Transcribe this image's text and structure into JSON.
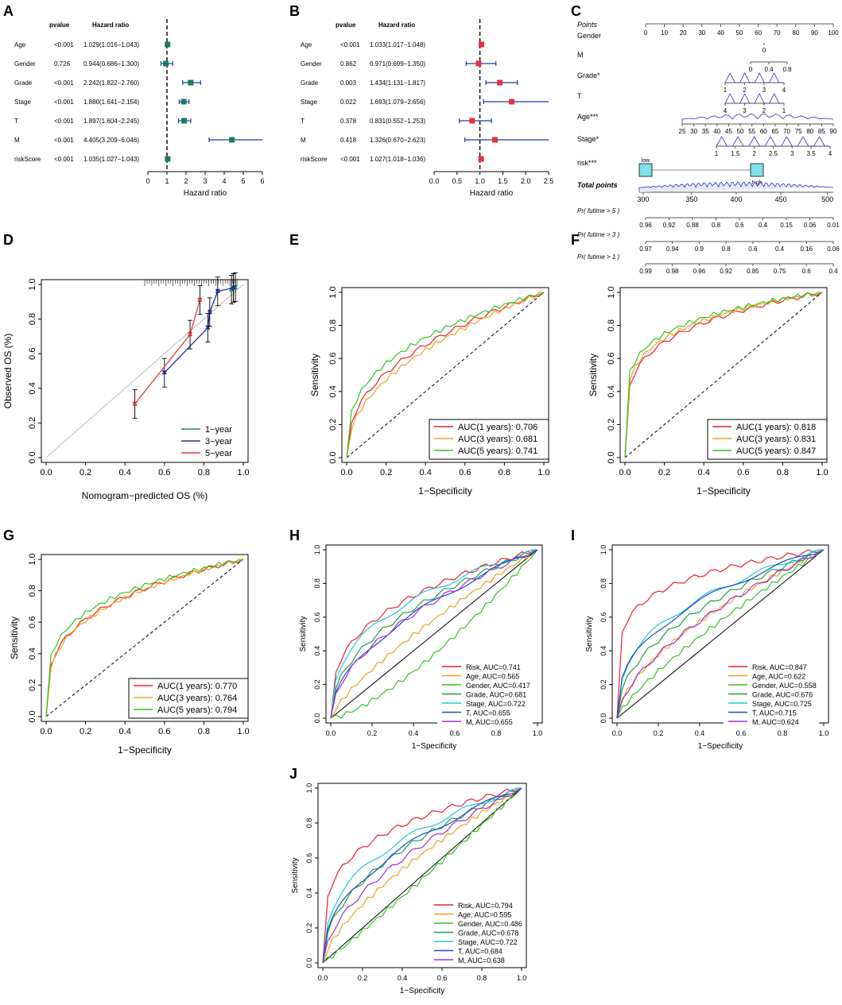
{
  "chart_data": [
    {
      "panel": "A",
      "type": "forest",
      "header": {
        "pvalue": "pvalue",
        "hr": "Hazard ratio"
      },
      "xlabel": "Hazard ratio",
      "xlim": [
        0,
        6
      ],
      "ticks": [
        0,
        1,
        2,
        3,
        4,
        5,
        6
      ],
      "color": "#1e7a5e",
      "rows": [
        {
          "name": "Age",
          "p": "<0.001",
          "text": "1.029(1.016−1.043)",
          "hr": 1.029,
          "lo": 1.016,
          "hi": 1.043
        },
        {
          "name": "Gender",
          "p": "0.726",
          "text": "0.944(0.686−1.300)",
          "hr": 0.944,
          "lo": 0.686,
          "hi": 1.3
        },
        {
          "name": "Grade",
          "p": "<0.001",
          "text": "2.242(1.822−2.760)",
          "hr": 2.242,
          "lo": 1.822,
          "hi": 2.76
        },
        {
          "name": "Stage",
          "p": "<0.001",
          "text": "1.880(1.641−2.154)",
          "hr": 1.88,
          "lo": 1.641,
          "hi": 2.154
        },
        {
          "name": "T",
          "p": "<0.001",
          "text": "1.897(1.604−2.245)",
          "hr": 1.897,
          "lo": 1.604,
          "hi": 2.245
        },
        {
          "name": "M",
          "p": "<0.001",
          "text": "4.405(3.209−6.046)",
          "hr": 4.405,
          "lo": 3.209,
          "hi": 6.046
        },
        {
          "name": "riskScore",
          "p": "<0.001",
          "text": "1.035(1.027−1.043)",
          "hr": 1.035,
          "lo": 1.027,
          "hi": 1.043
        }
      ]
    },
    {
      "panel": "B",
      "type": "forest",
      "header": {
        "pvalue": "pvalue",
        "hr": "Hazard ratio"
      },
      "xlabel": "Hazard ratio",
      "xlim": [
        0,
        2.5
      ],
      "ticks": [
        0,
        0.5,
        1,
        1.5,
        2,
        2.5
      ],
      "tick_labels": [
        "0.0",
        "0.5",
        "1.0",
        "1.5",
        "2.0",
        "2.5"
      ],
      "color": "#e8303a",
      "rows": [
        {
          "name": "Age",
          "p": "<0.001",
          "text": "1.033(1.017−1.048)",
          "hr": 1.033,
          "lo": 1.017,
          "hi": 1.048
        },
        {
          "name": "Gender",
          "p": "0.862",
          "text": "0.971(0.699−1.350)",
          "hr": 0.971,
          "lo": 0.699,
          "hi": 1.35
        },
        {
          "name": "Grade",
          "p": "0.003",
          "text": "1.434(1.131−1.817)",
          "hr": 1.434,
          "lo": 1.131,
          "hi": 1.817
        },
        {
          "name": "Stage",
          "p": "0.022",
          "text": "1.693(1.079−2.656)",
          "hr": 1.693,
          "lo": 1.079,
          "hi": 2.656
        },
        {
          "name": "T",
          "p": "0.378",
          "text": "0.831(0.552−1.253)",
          "hr": 0.831,
          "lo": 0.552,
          "hi": 1.253
        },
        {
          "name": "M",
          "p": "0.418",
          "text": "1.326(0.670−2.623)",
          "hr": 1.326,
          "lo": 0.67,
          "hi": 2.623
        },
        {
          "name": "riskScore",
          "p": "<0.001",
          "text": "1.027(1.018−1.036)",
          "hr": 1.027,
          "lo": 1.018,
          "hi": 1.036
        }
      ]
    },
    {
      "panel": "C",
      "type": "nomogram",
      "rows": [
        {
          "name": "Points",
          "italic": true,
          "scale": [
            0,
            100
          ],
          "ticks": [
            "0",
            "10",
            "20",
            "30",
            "40",
            "50",
            "60",
            "70",
            "80",
            "90",
            "100"
          ]
        },
        {
          "name": "Gender",
          "labels": [
            "0"
          ]
        },
        {
          "name": "M",
          "labels": [
            "0",
            "0.4",
            "0.8"
          ]
        },
        {
          "name": "Grade*",
          "labels": [
            "1",
            "2",
            "3",
            "4"
          ]
        },
        {
          "name": "T",
          "labels": [
            "4",
            "3",
            "2",
            "1"
          ]
        },
        {
          "name": "Age***",
          "labels": [
            "25",
            "30",
            "35",
            "40",
            "45",
            "50",
            "55",
            "60",
            "65",
            "70",
            "75",
            "80",
            "85",
            "90"
          ]
        },
        {
          "name": "Stage*",
          "labels": [
            "1",
            "1.5",
            "2",
            "2.5",
            "3",
            "3.5",
            "4"
          ]
        },
        {
          "name": "risk***",
          "labels": [
            "low",
            "high"
          ]
        },
        {
          "name": "Total points",
          "bold": true,
          "labels": [
            "300",
            "350",
            "400",
            "450",
            "500"
          ]
        },
        {
          "name": "Pr( futime > 5 )",
          "labels": [
            "0.96",
            "0.92",
            "0.88",
            "0.8",
            "0.6",
            "0.4",
            "0.15",
            "0.06",
            "0.01"
          ]
        },
        {
          "name": "Pr( futime > 3 )",
          "labels": [
            "0.97",
            "0.94",
            "0.9",
            "0.8",
            "0.6",
            "0.4",
            "0.16",
            "0.06"
          ]
        },
        {
          "name": "Pr( futime > 1 )",
          "labels": [
            "0.99",
            "0.98",
            "0.96",
            "0.92",
            "0.85",
            "0.75",
            "0.6",
            "0.4"
          ]
        }
      ]
    },
    {
      "panel": "D",
      "type": "calibration",
      "xlabel": "Nomogram−predicted OS (%)",
      "ylabel": "Observed OS (%)",
      "xlim": [
        0,
        1
      ],
      "ylim": [
        0,
        1
      ],
      "ticks": [
        "0.0",
        "0.2",
        "0.4",
        "0.6",
        "0.8",
        "1.0"
      ],
      "series": [
        {
          "name": "1−year",
          "color": "#1e8a6e",
          "points": [
            [
              0.94,
              0.97
            ],
            [
              0.95,
              0.98
            ],
            [
              0.96,
              0.985
            ]
          ]
        },
        {
          "name": "3−year",
          "color": "#2030a0",
          "points": [
            [
              0.6,
              0.49
            ],
            [
              0.82,
              0.75
            ],
            [
              0.83,
              0.84
            ],
            [
              0.87,
              0.96
            ],
            [
              0.95,
              0.98
            ]
          ]
        },
        {
          "name": "5−year",
          "color": "#e03a3a",
          "points": [
            [
              0.45,
              0.31
            ],
            [
              0.73,
              0.71
            ],
            [
              0.78,
              0.91
            ]
          ]
        }
      ]
    },
    {
      "panel": "E",
      "type": "roc",
      "xlabel": "1−Specificity",
      "ylabel": "Sensitivity",
      "ticks": [
        "0.0",
        "0.2",
        "0.4",
        "0.6",
        "0.8",
        "1.0"
      ],
      "series": [
        {
          "label": "AUC(1 years): 0.706",
          "color": "#e8232b",
          "auc": 0.706
        },
        {
          "label": "AUC(3 years): 0.681",
          "color": "#f0a020",
          "auc": 0.681
        },
        {
          "label": "AUC(5 years): 0.741",
          "color": "#2ec81e",
          "auc": 0.741
        }
      ]
    },
    {
      "panel": "F",
      "type": "roc",
      "xlabel": "1−Specificity",
      "ylabel": "Sensitivity",
      "ticks": [
        "0.0",
        "0.2",
        "0.4",
        "0.6",
        "0.8",
        "1.0"
      ],
      "series": [
        {
          "label": "AUC(1 years): 0.818",
          "color": "#e8232b",
          "auc": 0.818
        },
        {
          "label": "AUC(3 years): 0.831",
          "color": "#f0a020",
          "auc": 0.831
        },
        {
          "label": "AUC(5 years): 0.847",
          "color": "#2ec81e",
          "auc": 0.847
        }
      ]
    },
    {
      "panel": "G",
      "type": "roc",
      "xlabel": "1−Specificity",
      "ylabel": "Sensitivity",
      "ticks": [
        "0.0",
        "0.2",
        "0.4",
        "0.6",
        "0.8",
        "1.0"
      ],
      "series": [
        {
          "label": "AUC(1 years): 0.770",
          "color": "#e8232b",
          "auc": 0.77
        },
        {
          "label": "AUC(3 years): 0.764",
          "color": "#f0a020",
          "auc": 0.764
        },
        {
          "label": "AUC(5 years): 0.794",
          "color": "#2ec81e",
          "auc": 0.794
        }
      ]
    },
    {
      "panel": "H",
      "type": "roc",
      "xlabel": "1−Specificity",
      "ylabel": "Sensitivity",
      "ticks": [
        "0.0",
        "0.2",
        "0.4",
        "0.6",
        "0.8",
        "1.0"
      ],
      "series": [
        {
          "label": "Risk, AUC=0.741",
          "color": "#e8232b",
          "auc": 0.741
        },
        {
          "label": "Age, AUC=0.565",
          "color": "#f0a020",
          "auc": 0.565
        },
        {
          "label": "Gender, AUC=0.417",
          "color": "#2ec81e",
          "auc": 0.417
        },
        {
          "label": "Grade, AUC=0.681",
          "color": "#20a040",
          "auc": 0.681
        },
        {
          "label": "Stage, AUC=0.722",
          "color": "#1ec8e0",
          "auc": 0.722
        },
        {
          "label": "T, AUC=0.655",
          "color": "#1a4ad0",
          "auc": 0.655
        },
        {
          "label": "M, AUC=0.655",
          "color": "#a030d0",
          "auc": 0.655
        }
      ]
    },
    {
      "panel": "I",
      "type": "roc",
      "xlabel": "1−Specificity",
      "ylabel": "Sensitivity",
      "ticks": [
        "0.0",
        "0.2",
        "0.4",
        "0.6",
        "0.8",
        "1.0"
      ],
      "series": [
        {
          "label": "Risk, AUC=0.847",
          "color": "#e8232b",
          "auc": 0.847
        },
        {
          "label": "Age, AUC=0.622",
          "color": "#f0a020",
          "auc": 0.622
        },
        {
          "label": "Gender, AUC=0.558",
          "color": "#2ec81e",
          "auc": 0.558
        },
        {
          "label": "Grade, AUC=0.676",
          "color": "#20a040",
          "auc": 0.676
        },
        {
          "label": "Stage, AUC=0.725",
          "color": "#1ec8e0",
          "auc": 0.725
        },
        {
          "label": "T, AUC=0.715",
          "color": "#1a4ad0",
          "auc": 0.715
        },
        {
          "label": "M, AUC=0.624",
          "color": "#a030d0",
          "auc": 0.624
        }
      ]
    },
    {
      "panel": "J",
      "type": "roc",
      "xlabel": "1−Specificity",
      "ylabel": "Sensitivity",
      "ticks": [
        "0.0",
        "0.2",
        "0.4",
        "0.6",
        "0.8",
        "1.0"
      ],
      "series": [
        {
          "label": "Risk, AUC=0.794",
          "color": "#e8232b",
          "auc": 0.794
        },
        {
          "label": "Age, AUC=0.595",
          "color": "#f0a020",
          "auc": 0.595
        },
        {
          "label": "Gender, AUC=0.486",
          "color": "#2ec81e",
          "auc": 0.486
        },
        {
          "label": "Grade, AUC=0.678",
          "color": "#20a040",
          "auc": 0.678
        },
        {
          "label": "Stage, AUC=0.722",
          "color": "#1ec8e0",
          "auc": 0.722
        },
        {
          "label": "T, AUC=0.684",
          "color": "#1a4ad0",
          "auc": 0.684
        },
        {
          "label": "M, AUC=0.638",
          "color": "#a030d0",
          "auc": 0.638
        }
      ]
    }
  ]
}
